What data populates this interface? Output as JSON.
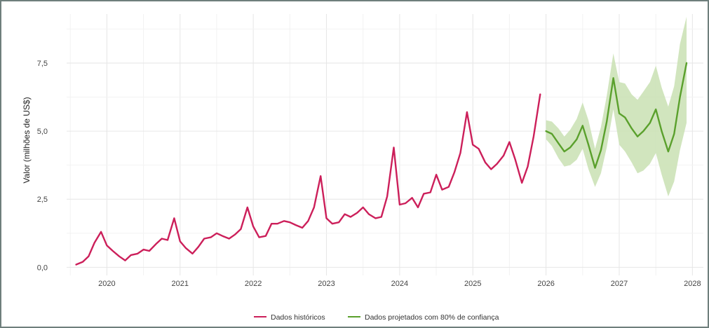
{
  "chart_data": {
    "type": "line",
    "title": "",
    "xlabel": "",
    "ylabel": "Valor (milhões de US$)",
    "xlim": [
      2019.45,
      2028.15
    ],
    "ylim": [
      -0.3,
      9.3
    ],
    "x_ticks": [
      "2020",
      "2021",
      "2022",
      "2023",
      "2024",
      "2025",
      "2026",
      "2027",
      "2028"
    ],
    "y_ticks": [
      "0,0",
      "2,5",
      "5,0",
      "7,5"
    ],
    "y_tick_values": [
      0,
      2.5,
      5,
      7.5
    ],
    "grid": true,
    "legend_position": "bottom",
    "colors": {
      "historical": "#cc1f5a",
      "forecast": "#5aa02c",
      "band": "#c9e0b3"
    },
    "series": [
      {
        "name": "Dados históricos",
        "x": [
          2019.58,
          2019.67,
          2019.75,
          2019.83,
          2019.92,
          2020.0,
          2020.08,
          2020.17,
          2020.25,
          2020.33,
          2020.42,
          2020.5,
          2020.58,
          2020.67,
          2020.75,
          2020.83,
          2020.92,
          2021.0,
          2021.08,
          2021.17,
          2021.25,
          2021.33,
          2021.42,
          2021.5,
          2021.58,
          2021.67,
          2021.75,
          2021.83,
          2021.92,
          2022.0,
          2022.08,
          2022.17,
          2022.25,
          2022.33,
          2022.42,
          2022.5,
          2022.58,
          2022.67,
          2022.75,
          2022.83,
          2022.92,
          2023.0,
          2023.08,
          2023.17,
          2023.25,
          2023.33,
          2023.42,
          2023.5,
          2023.58,
          2023.67,
          2023.75,
          2023.83,
          2023.92,
          2024.0,
          2024.08,
          2024.17,
          2024.25,
          2024.33,
          2024.42,
          2024.5,
          2024.58,
          2024.67,
          2024.75,
          2024.83,
          2024.92,
          2025.0,
          2025.08,
          2025.17,
          2025.25,
          2025.33,
          2025.42,
          2025.5,
          2025.58,
          2025.67,
          2025.75,
          2025.83,
          2025.92
        ],
        "values": [
          0.1,
          0.2,
          0.4,
          0.9,
          1.3,
          0.8,
          0.6,
          0.4,
          0.25,
          0.45,
          0.5,
          0.65,
          0.6,
          0.85,
          1.05,
          1.0,
          1.8,
          0.95,
          0.7,
          0.5,
          0.75,
          1.05,
          1.1,
          1.25,
          1.15,
          1.05,
          1.2,
          1.4,
          2.2,
          1.5,
          1.1,
          1.15,
          1.6,
          1.6,
          1.7,
          1.65,
          1.55,
          1.45,
          1.7,
          2.2,
          3.35,
          1.8,
          1.6,
          1.65,
          1.95,
          1.85,
          2.0,
          2.2,
          1.95,
          1.8,
          1.85,
          2.6,
          4.4,
          2.3,
          2.35,
          2.55,
          2.2,
          2.7,
          2.75,
          3.4,
          2.85,
          2.95,
          3.5,
          4.2,
          5.7,
          4.5,
          4.35,
          3.85,
          3.6,
          3.8,
          4.1,
          4.6,
          3.95,
          3.1,
          3.7,
          4.8,
          6.35
        ]
      },
      {
        "name": "Dados projetados com 80% de confiança",
        "x": [
          2026.0,
          2026.08,
          2026.17,
          2026.25,
          2026.33,
          2026.42,
          2026.5,
          2026.58,
          2026.67,
          2026.75,
          2026.83,
          2026.92,
          2027.0,
          2027.08,
          2027.17,
          2027.25,
          2027.33,
          2027.42,
          2027.5,
          2027.58,
          2027.67,
          2027.75,
          2027.83,
          2027.92
        ],
        "values": [
          5.0,
          4.9,
          4.55,
          4.25,
          4.4,
          4.7,
          5.2,
          4.5,
          3.65,
          4.3,
          5.35,
          6.95,
          5.65,
          5.5,
          5.1,
          4.8,
          5.0,
          5.3,
          5.8,
          5.0,
          4.25,
          4.9,
          6.25,
          7.5
        ],
        "lower": [
          4.7,
          4.45,
          4.0,
          3.7,
          3.75,
          3.95,
          4.35,
          3.6,
          2.95,
          3.45,
          4.4,
          5.8,
          4.5,
          4.25,
          3.85,
          3.45,
          3.55,
          3.8,
          4.2,
          3.4,
          2.6,
          3.15,
          4.3,
          5.3
        ],
        "upper": [
          5.4,
          5.35,
          5.1,
          4.8,
          5.05,
          5.45,
          6.05,
          5.4,
          4.35,
          5.15,
          6.3,
          7.85,
          6.8,
          6.75,
          6.35,
          6.15,
          6.45,
          6.8,
          7.4,
          6.6,
          5.9,
          6.65,
          8.2,
          9.2
        ]
      }
    ]
  }
}
